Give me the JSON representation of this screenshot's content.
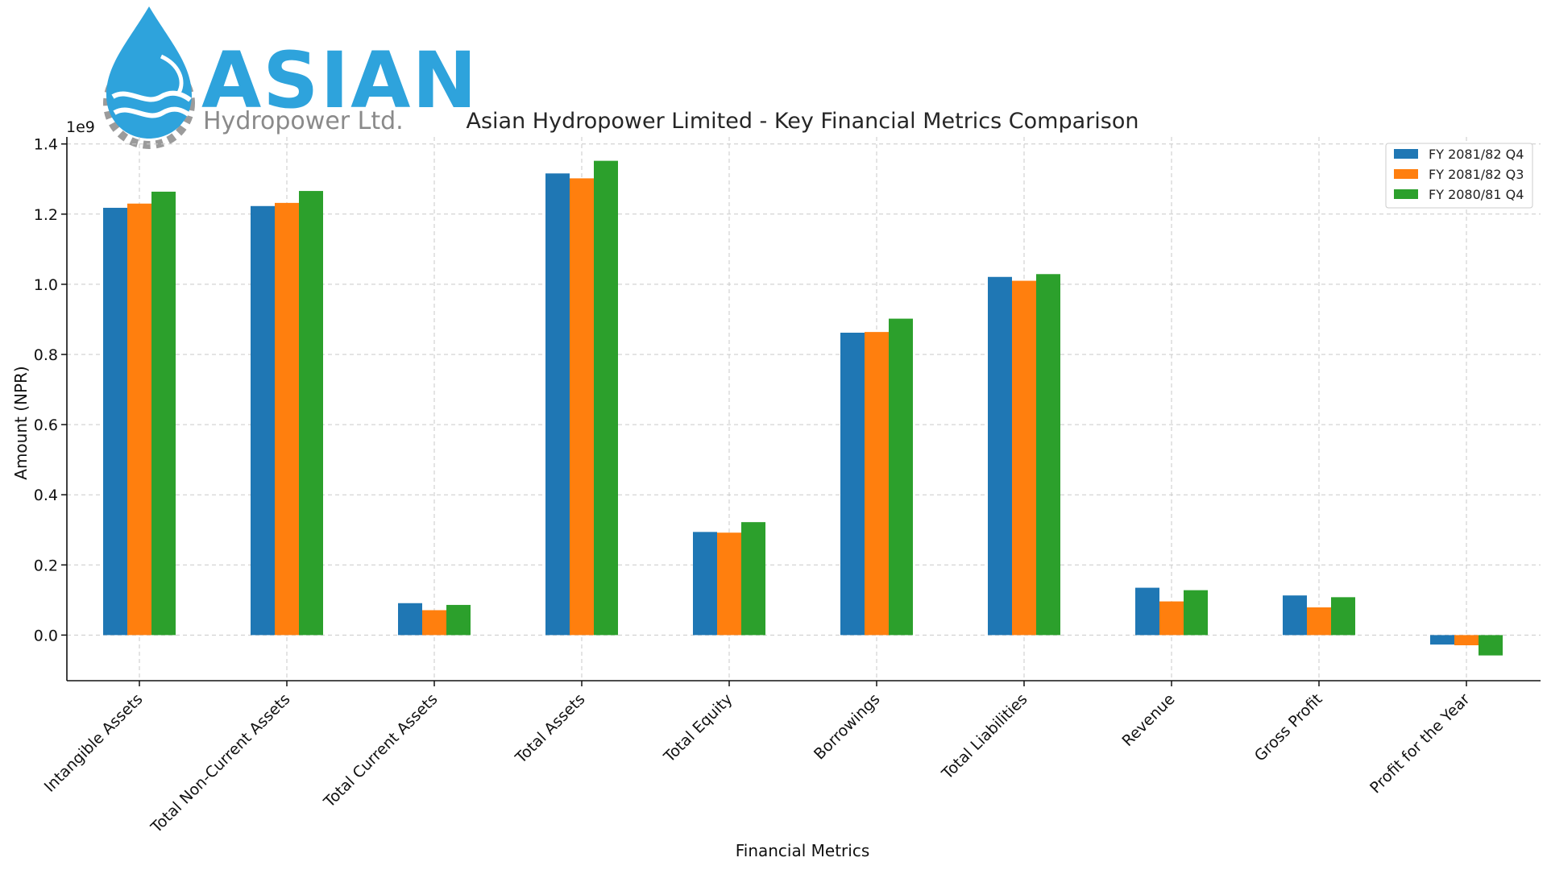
{
  "logo": {
    "wordmark": "ASIAN",
    "subtitle": "Hydropower Ltd.",
    "primary_color": "#2ea3dc",
    "secondary_color": "#8a8a8a"
  },
  "chart_data": {
    "type": "bar",
    "title": "Asian Hydropower Limited - Key Financial Metrics Comparison",
    "xlabel": "Financial Metrics",
    "ylabel": "Amount (NPR)",
    "y_offset_label": "1e9",
    "ylim": [
      -0.13,
      1.42
    ],
    "yticks": [
      0.0,
      0.2,
      0.4,
      0.6,
      0.8,
      1.0,
      1.2,
      1.4
    ],
    "ytick_labels": [
      "0.0",
      "0.2",
      "0.4",
      "0.6",
      "0.8",
      "1.0",
      "1.2",
      "1.4"
    ],
    "grid": true,
    "legend_position": "top-right",
    "categories": [
      "Intangible Assets",
      "Total Non-Current Assets",
      "Total Current Assets",
      "Total Assets",
      "Total Equity",
      "Borrowings",
      "Total Liabilities",
      "Revenue",
      "Gross Profit",
      "Profit for the Year"
    ],
    "series": [
      {
        "name": "FY 2081/82 Q4",
        "color": "#1f77b4",
        "values": [
          1.218,
          1.223,
          0.091,
          1.316,
          0.294,
          0.862,
          1.021,
          0.135,
          0.113,
          -0.027
        ]
      },
      {
        "name": "FY 2081/82 Q3",
        "color": "#ff7f0e",
        "values": [
          1.23,
          1.232,
          0.071,
          1.302,
          0.292,
          0.864,
          1.01,
          0.096,
          0.079,
          -0.029
        ]
      },
      {
        "name": "FY 2080/81 Q4",
        "color": "#2ca02c",
        "values": [
          1.264,
          1.266,
          0.086,
          1.352,
          0.322,
          0.902,
          1.029,
          0.128,
          0.108,
          -0.058
        ]
      }
    ]
  }
}
